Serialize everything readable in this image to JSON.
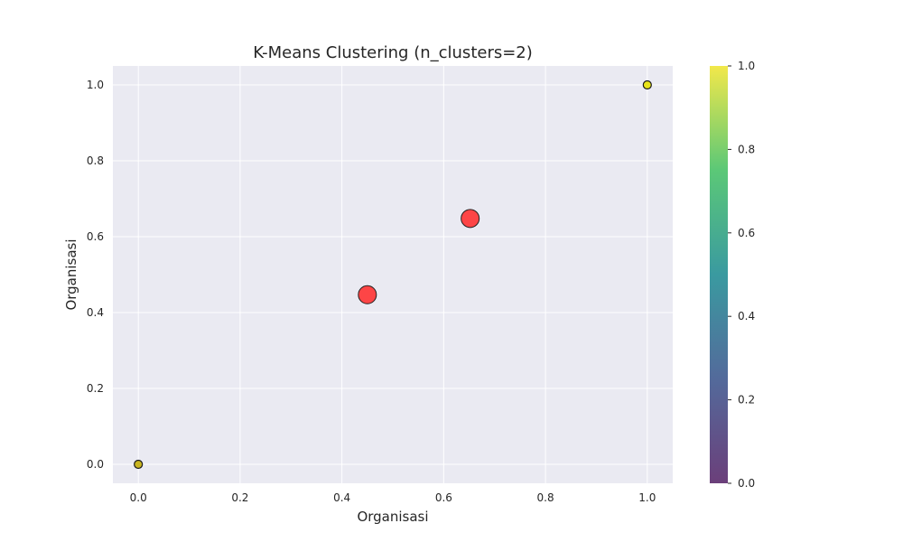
{
  "chart_data": {
    "type": "scatter",
    "title": "K-Means Clustering (n_clusters=2)",
    "xlabel": "Organisasi",
    "ylabel": "Organisasi",
    "xlim": [
      -0.05,
      1.05
    ],
    "ylim": [
      -0.05,
      1.05
    ],
    "x_ticks": [
      "0.0",
      "0.2",
      "0.4",
      "0.6",
      "0.8",
      "1.0"
    ],
    "y_ticks": [
      "0.0",
      "0.2",
      "0.4",
      "0.6",
      "0.8",
      "1.0"
    ],
    "grid": true,
    "points": [
      {
        "x": 0.0,
        "y": 0.0,
        "cluster": 0
      },
      {
        "x": 1.0,
        "y": 1.0,
        "cluster": 1
      }
    ],
    "centroids": [
      {
        "x": 0.45,
        "y": 0.447
      },
      {
        "x": 0.652,
        "y": 0.648
      }
    ],
    "colorbar": {
      "colormap": "viridis",
      "range": [
        0.0,
        1.0
      ],
      "ticks": [
        "0.0",
        "0.2",
        "0.4",
        "0.6",
        "0.8",
        "1.0"
      ]
    },
    "colors": {
      "plot_background": "#eaeaf2",
      "grid": "#ffffff",
      "centroid": "#ff3333",
      "point_cluster_0": "#c9b520",
      "point_cluster_1": "#e8e419"
    }
  }
}
